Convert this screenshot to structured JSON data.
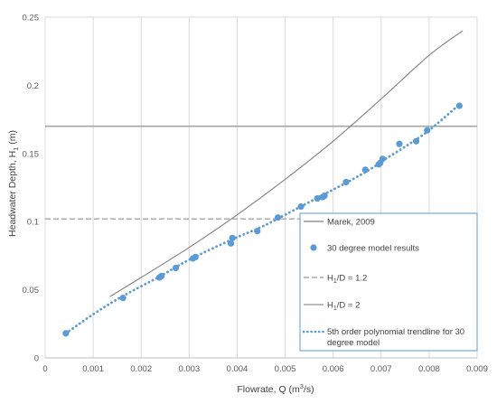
{
  "chart_data": {
    "type": "scatter",
    "xlabel": "Flowrate, Q (m³/s)",
    "ylabel": "Headwater Depth, H₁ (m)",
    "xlim": [
      0,
      0.009
    ],
    "ylim": [
      0,
      0.25
    ],
    "x_ticks": [
      "0",
      "0.001",
      "0.002",
      "0.003",
      "0.004",
      "0.005",
      "0.006",
      "0.007",
      "0.008",
      "0.009"
    ],
    "y_ticks": [
      "0",
      "0.05",
      "0.1",
      "0.15",
      "0.2",
      "0.25"
    ],
    "grid": "vertical",
    "legend_position": "bottom-right",
    "series": [
      {
        "name": "Marek, 2009",
        "kind": "line",
        "color": "#7f7f7f",
        "x": [
          0.00135,
          0.002,
          0.003,
          0.004,
          0.005,
          0.006,
          0.007,
          0.008,
          0.0087
        ],
        "y": [
          0.045,
          0.059,
          0.081,
          0.105,
          0.131,
          0.159,
          0.19,
          0.222,
          0.24
        ]
      },
      {
        "name": "30 degree model results",
        "kind": "markers",
        "color": "#5b9bd5",
        "x": [
          0.00043,
          0.00162,
          0.00238,
          0.00242,
          0.00272,
          0.00308,
          0.00313,
          0.00387,
          0.0039,
          0.00442,
          0.00485,
          0.00533,
          0.00567,
          0.00578,
          0.00582,
          0.00627,
          0.00667,
          0.00695,
          0.00698,
          0.00703,
          0.00738,
          0.00773,
          0.00796,
          0.00863
        ],
        "y": [
          0.018,
          0.044,
          0.059,
          0.06,
          0.066,
          0.073,
          0.074,
          0.084,
          0.088,
          0.093,
          0.103,
          0.111,
          0.117,
          0.118,
          0.119,
          0.129,
          0.138,
          0.142,
          0.143,
          0.146,
          0.157,
          0.159,
          0.167,
          0.185
        ]
      },
      {
        "name": "H₁/D = 1.2",
        "kind": "hline",
        "color": "#a6a6a6",
        "dash": "dashed",
        "y": 0.102
      },
      {
        "name": "H₁/D = 2",
        "kind": "hline",
        "color": "#a6a6a6",
        "dash": "solid",
        "y": 0.17
      },
      {
        "name": "5th order polynomial trendline for 30 degree model",
        "kind": "trendline",
        "color": "#5b9bd5",
        "x": [
          0.00043,
          0.001,
          0.0016,
          0.0024,
          0.003,
          0.0039,
          0.0045,
          0.005,
          0.0057,
          0.0063,
          0.0068,
          0.007,
          0.0075,
          0.008,
          0.0086
        ],
        "y": [
          0.018,
          0.032,
          0.045,
          0.06,
          0.072,
          0.087,
          0.096,
          0.105,
          0.118,
          0.129,
          0.139,
          0.144,
          0.155,
          0.167,
          0.185
        ]
      }
    ]
  },
  "legend": {
    "marek": "Marek, 2009",
    "model": "30 degree model results",
    "h12_prefix": "H",
    "h12_sub": "1",
    "h12_suffix": "/D = 1.2",
    "h2_prefix": "H",
    "h2_sub": "1",
    "h2_suffix": "/D = 2",
    "trend_line1": "5th order polynomial trendline for 30",
    "trend_line2": "degree model"
  },
  "axes": {
    "x_title_main": "Flowrate, Q (m",
    "x_title_sup": "3",
    "x_title_end": "/s)",
    "y_title_main": "Headwater Depth, H",
    "y_title_sub": "1",
    "y_title_end": " (m)"
  }
}
